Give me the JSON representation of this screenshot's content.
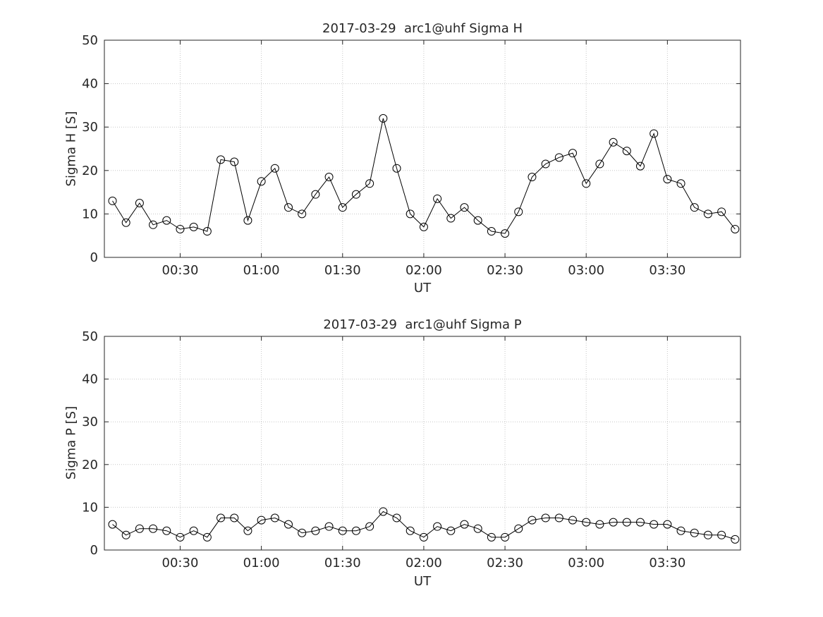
{
  "figure": {
    "background": "#ffffff"
  },
  "colors": {
    "line": "#000000",
    "axis": "#262626",
    "grid": "#c7c7c7",
    "text": "#262626"
  },
  "chart_data": [
    {
      "type": "line",
      "title": "2017-03-29  arc1@uhf Sigma H",
      "xlabel": "UT",
      "ylabel": "Sigma H [S]",
      "ylim": [
        0,
        50
      ],
      "yticks": [
        0,
        10,
        20,
        30,
        40,
        50
      ],
      "xlim_minutes": [
        2,
        237
      ],
      "xticks": [
        "00:30",
        "01:00",
        "01:30",
        "02:00",
        "02:30",
        "03:00",
        "03:30"
      ],
      "grid": true,
      "marker": "circle",
      "x": [
        "00:05",
        "00:10",
        "00:15",
        "00:20",
        "00:25",
        "00:30",
        "00:35",
        "00:40",
        "00:45",
        "00:50",
        "00:55",
        "01:00",
        "01:05",
        "01:10",
        "01:15",
        "01:20",
        "01:25",
        "01:30",
        "01:35",
        "01:40",
        "01:45",
        "01:50",
        "01:55",
        "02:00",
        "02:05",
        "02:10",
        "02:15",
        "02:20",
        "02:25",
        "02:30",
        "02:35",
        "02:40",
        "02:45",
        "02:50",
        "02:55",
        "03:00",
        "03:05",
        "03:10",
        "03:15",
        "03:20",
        "03:25",
        "03:30",
        "03:35",
        "03:40",
        "03:45",
        "03:50",
        "03:55"
      ],
      "values": [
        13,
        8,
        12.5,
        7.5,
        8.5,
        6.5,
        7,
        6,
        22.5,
        22,
        8.5,
        17.5,
        20.5,
        11.5,
        10,
        14.5,
        18.5,
        11.5,
        14.5,
        17,
        32,
        20.5,
        10,
        7,
        13.5,
        9,
        11.5,
        8.5,
        6,
        5.5,
        10.5,
        18.5,
        21.5,
        23,
        24,
        17,
        21.5,
        26.5,
        24.5,
        21,
        28.5,
        18,
        17,
        11.5,
        10,
        10.5,
        6.5
      ]
    },
    {
      "type": "line",
      "title": "2017-03-29  arc1@uhf Sigma P",
      "xlabel": "UT",
      "ylabel": "Sigma P [S]",
      "ylim": [
        0,
        50
      ],
      "yticks": [
        0,
        10,
        20,
        30,
        40,
        50
      ],
      "xlim_minutes": [
        2,
        237
      ],
      "xticks": [
        "00:30",
        "01:00",
        "01:30",
        "02:00",
        "02:30",
        "03:00",
        "03:30"
      ],
      "grid": true,
      "marker": "circle",
      "x": [
        "00:05",
        "00:10",
        "00:15",
        "00:20",
        "00:25",
        "00:30",
        "00:35",
        "00:40",
        "00:45",
        "00:50",
        "00:55",
        "01:00",
        "01:05",
        "01:10",
        "01:15",
        "01:20",
        "01:25",
        "01:30",
        "01:35",
        "01:40",
        "01:45",
        "01:50",
        "01:55",
        "02:00",
        "02:05",
        "02:10",
        "02:15",
        "02:20",
        "02:25",
        "02:30",
        "02:35",
        "02:40",
        "02:45",
        "02:50",
        "02:55",
        "03:00",
        "03:05",
        "03:10",
        "03:15",
        "03:20",
        "03:25",
        "03:30",
        "03:35",
        "03:40",
        "03:45",
        "03:50",
        "03:55"
      ],
      "values": [
        6,
        3.5,
        5,
        5,
        4.5,
        3,
        4.5,
        3,
        7.5,
        7.5,
        4.5,
        7,
        7.5,
        6,
        4,
        4.5,
        5.5,
        4.5,
        4.5,
        5.5,
        9,
        7.5,
        4.5,
        3,
        5.5,
        4.5,
        6,
        5,
        3,
        3,
        5,
        7,
        7.5,
        7.5,
        7,
        6.5,
        6,
        6.5,
        6.5,
        6.5,
        6,
        6,
        4.5,
        4,
        3.5,
        3.5,
        2.5
      ]
    }
  ]
}
